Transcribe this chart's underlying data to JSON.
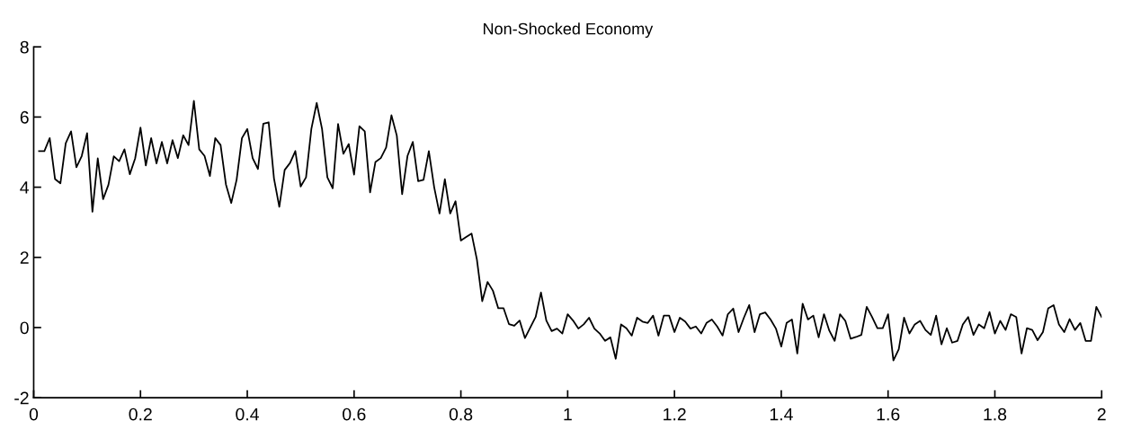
{
  "chart_data": {
    "type": "line",
    "title": "Non-Shocked Economy",
    "x": [
      0.01,
      0.02,
      0.03,
      0.04,
      0.05,
      0.06,
      0.07,
      0.08,
      0.09,
      0.1,
      0.11,
      0.12,
      0.13,
      0.14,
      0.15,
      0.16,
      0.17,
      0.18,
      0.19,
      0.2,
      0.21,
      0.22,
      0.23,
      0.24,
      0.25,
      0.26,
      0.27,
      0.28,
      0.29,
      0.3,
      0.31,
      0.32,
      0.33,
      0.34,
      0.35,
      0.36,
      0.37,
      0.38,
      0.39,
      0.4,
      0.41,
      0.42,
      0.43,
      0.44,
      0.45,
      0.46,
      0.47,
      0.48,
      0.49,
      0.5,
      0.51,
      0.52,
      0.53,
      0.54,
      0.55,
      0.56,
      0.57,
      0.58,
      0.59,
      0.6,
      0.61,
      0.62,
      0.63,
      0.64,
      0.65,
      0.66,
      0.67,
      0.68,
      0.69,
      0.7,
      0.71,
      0.72,
      0.73,
      0.74,
      0.75,
      0.76,
      0.77,
      0.78,
      0.79,
      0.8,
      0.81,
      0.82,
      0.83,
      0.84,
      0.85,
      0.86,
      0.87,
      0.88,
      0.89,
      0.9,
      0.91,
      0.92,
      0.93,
      0.94,
      0.95,
      0.96,
      0.97,
      0.98,
      0.99,
      1.0,
      1.01,
      1.02,
      1.03,
      1.04,
      1.05,
      1.06,
      1.07,
      1.08,
      1.09,
      1.1,
      1.11,
      1.12,
      1.13,
      1.14,
      1.15,
      1.16,
      1.17,
      1.18,
      1.19,
      1.2,
      1.21,
      1.22,
      1.23,
      1.24,
      1.25,
      1.26,
      1.27,
      1.28,
      1.29,
      1.3,
      1.31,
      1.32,
      1.33,
      1.34,
      1.35,
      1.36,
      1.37,
      1.38,
      1.39,
      1.4,
      1.41,
      1.42,
      1.43,
      1.44,
      1.45,
      1.46,
      1.47,
      1.48,
      1.49,
      1.5,
      1.51,
      1.52,
      1.53,
      1.54,
      1.55,
      1.56,
      1.57,
      1.58,
      1.59,
      1.6,
      1.61,
      1.62,
      1.63,
      1.64,
      1.65,
      1.66,
      1.67,
      1.68,
      1.69,
      1.7,
      1.71,
      1.72,
      1.73,
      1.74,
      1.75,
      1.76,
      1.77,
      1.78,
      1.79,
      1.8,
      1.81,
      1.82,
      1.83,
      1.84,
      1.85,
      1.86,
      1.87,
      1.88,
      1.89,
      1.9,
      1.91,
      1.92,
      1.93,
      1.94,
      1.95,
      1.96,
      1.97,
      1.98,
      1.99,
      2.0
    ],
    "series": [
      {
        "color": "#000000",
        "values": [
          5.03,
          5.03,
          5.4,
          4.23,
          4.11,
          5.25,
          5.59,
          4.57,
          4.89,
          5.54,
          3.3,
          4.82,
          3.66,
          4.07,
          4.88,
          4.74,
          5.08,
          4.37,
          4.82,
          5.7,
          4.62,
          5.4,
          4.68,
          5.29,
          4.68,
          5.34,
          4.83,
          5.48,
          5.2,
          6.46,
          5.08,
          4.89,
          4.32,
          5.4,
          5.2,
          4.08,
          3.55,
          4.21,
          5.4,
          5.66,
          4.83,
          4.52,
          5.81,
          5.85,
          4.25,
          3.44,
          4.49,
          4.69,
          5.03,
          4.02,
          4.28,
          5.66,
          6.4,
          5.66,
          4.28,
          3.97,
          5.8,
          4.95,
          5.23,
          4.36,
          5.74,
          5.59,
          3.85,
          4.72,
          4.83,
          5.13,
          6.05,
          5.47,
          3.8,
          4.89,
          5.29,
          4.17,
          4.21,
          5.03,
          4.0,
          3.25,
          4.23,
          3.25,
          3.6,
          2.48,
          2.58,
          2.68,
          1.94,
          0.75,
          1.3,
          1.05,
          0.55,
          0.55,
          0.1,
          0.05,
          0.2,
          -0.3,
          0.0,
          0.3,
          1.0,
          0.2,
          -0.1,
          -0.03,
          -0.17,
          0.38,
          0.2,
          -0.03,
          0.09,
          0.28,
          -0.03,
          -0.17,
          -0.38,
          -0.28,
          -0.89,
          0.09,
          -0.02,
          -0.23,
          0.28,
          0.17,
          0.13,
          0.34,
          -0.23,
          0.34,
          0.34,
          -0.13,
          0.28,
          0.17,
          -0.03,
          0.03,
          -0.17,
          0.13,
          0.23,
          0.03,
          -0.23,
          0.38,
          0.54,
          -0.13,
          0.28,
          0.64,
          -0.13,
          0.38,
          0.43,
          0.23,
          -0.03,
          -0.54,
          0.13,
          0.23,
          -0.74,
          0.68,
          0.23,
          0.34,
          -0.28,
          0.38,
          -0.09,
          -0.38,
          0.38,
          0.19,
          -0.32,
          -0.27,
          -0.21,
          0.59,
          0.3,
          -0.02,
          -0.02,
          0.38,
          -0.94,
          -0.62,
          0.28,
          -0.17,
          0.09,
          0.19,
          -0.07,
          -0.21,
          0.34,
          -0.48,
          -0.02,
          -0.43,
          -0.38,
          0.09,
          0.3,
          -0.21,
          0.09,
          -0.02,
          0.44,
          -0.17,
          0.19,
          -0.07,
          0.38,
          0.3,
          -0.74,
          -0.02,
          -0.07,
          -0.36,
          -0.13,
          0.55,
          0.64,
          0.09,
          -0.13,
          0.24,
          -0.07,
          0.13,
          -0.38,
          -0.38,
          0.59,
          0.3
        ]
      }
    ],
    "xlim": [
      0,
      2
    ],
    "ylim": [
      -2,
      8
    ],
    "xticks": [
      0,
      0.2,
      0.4,
      0.6,
      0.8,
      1,
      1.2,
      1.4,
      1.6,
      1.8,
      2
    ],
    "yticks": [
      -2,
      0,
      2,
      4,
      6,
      8
    ],
    "grid": false
  }
}
